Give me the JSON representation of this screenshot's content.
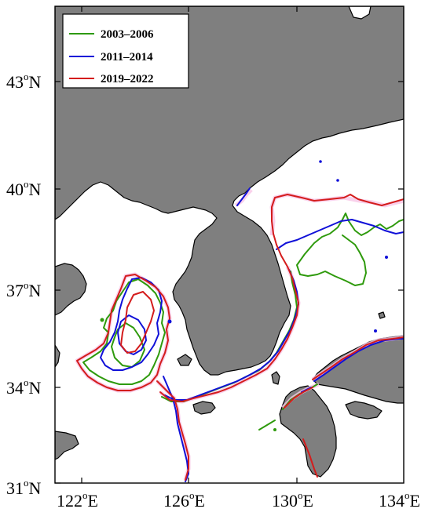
{
  "map": {
    "legend": [
      {
        "label": "2003–2006",
        "color": "#2e9a0c"
      },
      {
        "label": "2011–2014",
        "color": "#1010d8"
      },
      {
        "label": "2019–2022",
        "color": "#d41c1c"
      }
    ],
    "lat_labels": [
      {
        "deg": "43",
        "unit": "o",
        "hemi": "N"
      },
      {
        "deg": "40",
        "unit": "o",
        "hemi": "N"
      },
      {
        "deg": "37",
        "unit": "o",
        "hemi": "N"
      },
      {
        "deg": "34",
        "unit": "o",
        "hemi": "N"
      },
      {
        "deg": "31",
        "unit": "o",
        "hemi": "N"
      }
    ],
    "lon_labels": [
      {
        "deg": "122",
        "unit": "o",
        "hemi": "E"
      },
      {
        "deg": "126",
        "unit": "o",
        "hemi": "E"
      },
      {
        "deg": "130",
        "unit": "o",
        "hemi": "E"
      },
      {
        "deg": "134",
        "unit": "o",
        "hemi": "E"
      }
    ],
    "extent": {
      "lon": [
        121,
        134
      ],
      "lat": [
        31,
        45
      ]
    },
    "colors": {
      "land": "#7f7f7f",
      "sea": "#ffffff",
      "halo": "#f7c6e6"
    }
  }
}
